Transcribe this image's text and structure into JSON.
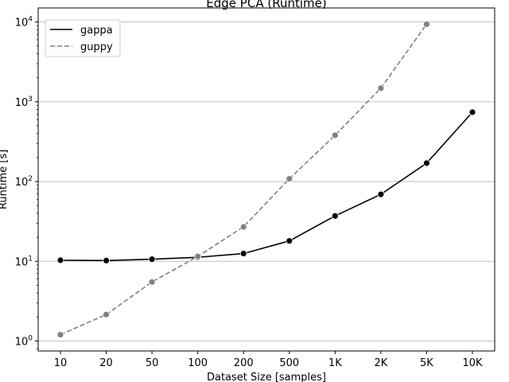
{
  "chart_data": {
    "type": "line",
    "title": "Edge PCA  (Runtime)",
    "xlabel": "Dataset Size  [samples]",
    "ylabel": "Runtime  [s]",
    "categories": [
      "10",
      "20",
      "50",
      "100",
      "200",
      "500",
      "1K",
      "2K",
      "5K",
      "10K"
    ],
    "y_scale": "log",
    "ylim": [
      0.75,
      15000
    ],
    "y_ticks": [
      1,
      10,
      100,
      1000,
      10000
    ],
    "y_tick_labels": [
      "10^0",
      "10^1",
      "10^2",
      "10^3",
      "10^4"
    ],
    "grid": "horizontal",
    "legend_position": "top-left",
    "series": [
      {
        "name": "gappa",
        "color": "#000000",
        "line_style": "solid",
        "values": [
          10.3,
          10.2,
          10.6,
          11.2,
          12.5,
          18,
          37,
          69,
          170,
          740
        ]
      },
      {
        "name": "guppy",
        "color": "#808080",
        "line_style": "dashed",
        "values": [
          1.2,
          2.15,
          5.5,
          11.5,
          27,
          108,
          380,
          1480,
          9400,
          null
        ]
      }
    ]
  }
}
